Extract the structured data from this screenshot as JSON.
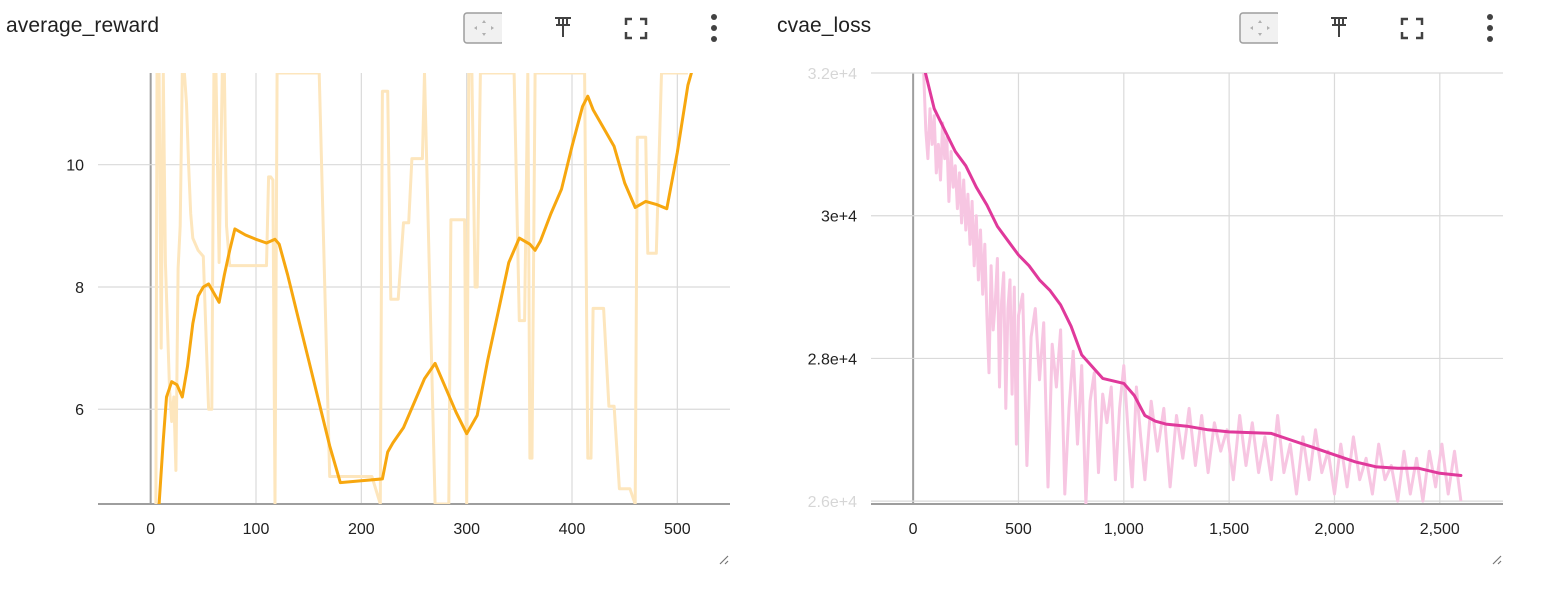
{
  "cards": [
    {
      "id": "average_reward",
      "title": "average_reward",
      "actions": [
        "fit-domain-icon",
        "pin-icon",
        "fullscreen-icon",
        "more-vert-icon"
      ]
    },
    {
      "id": "cvae_loss",
      "title": "cvae_loss",
      "actions": [
        "fit-domain-icon",
        "pin-icon",
        "fullscreen-icon",
        "more-vert-icon"
      ]
    }
  ],
  "colors": {
    "reward_smoothed": "#f7a70f",
    "reward_raw": "#fde6bd",
    "loss_smoothed": "#e0399b",
    "loss_raw": "#f7c6e2",
    "grid": "#dadada",
    "axis": "#9e9e9e"
  },
  "chart_data": [
    {
      "type": "line",
      "title": "average_reward",
      "xlim": [
        -50,
        550
      ],
      "ylim": [
        4.45,
        11.5
      ],
      "x_ticks": [
        0,
        100,
        200,
        300,
        400,
        500
      ],
      "x_tick_labels": [
        "0",
        "100",
        "200",
        "300",
        "400",
        "500"
      ],
      "y_ticks": [
        6,
        8,
        10
      ],
      "y_tick_labels": [
        "6",
        "8",
        "10"
      ],
      "grid": true,
      "series": [
        {
          "role": "smoothed",
          "x": [
            8,
            12,
            15,
            20,
            25,
            30,
            35,
            40,
            45,
            50,
            55,
            60,
            65,
            70,
            75,
            80,
            90,
            100,
            110,
            118,
            122,
            130,
            140,
            150,
            160,
            170,
            180,
            200,
            220,
            225,
            230,
            240,
            250,
            260,
            270,
            280,
            290,
            300,
            310,
            320,
            330,
            340,
            350,
            360,
            365,
            370,
            380,
            390,
            400,
            410,
            415,
            420,
            430,
            440,
            450,
            460,
            465,
            470,
            480,
            490,
            500,
            510,
            515
          ],
          "y": [
            4.45,
            5.5,
            6.2,
            6.45,
            6.4,
            6.2,
            6.7,
            7.4,
            7.85,
            8.0,
            8.05,
            7.9,
            7.75,
            8.2,
            8.6,
            8.95,
            8.85,
            8.78,
            8.72,
            8.78,
            8.7,
            8.2,
            7.5,
            6.8,
            6.1,
            5.4,
            4.8,
            4.83,
            4.86,
            5.3,
            5.45,
            5.7,
            6.1,
            6.5,
            6.75,
            6.35,
            5.95,
            5.6,
            5.9,
            6.8,
            7.6,
            8.4,
            8.8,
            8.7,
            8.6,
            8.75,
            9.2,
            9.6,
            10.3,
            10.95,
            11.12,
            10.9,
            10.6,
            10.3,
            9.7,
            9.3,
            9.35,
            9.4,
            9.35,
            9.28,
            10.2,
            11.3,
            11.6
          ]
        },
        {
          "role": "raw",
          "x": [
            5,
            6,
            8,
            10,
            12,
            14,
            18,
            20,
            22,
            24,
            26,
            28,
            30,
            32,
            34,
            36,
            38,
            40,
            45,
            50,
            55,
            58,
            60,
            62,
            65,
            68,
            70,
            72,
            75,
            80,
            85,
            90,
            95,
            100,
            105,
            110,
            112,
            114,
            116,
            118,
            120,
            125,
            130,
            140,
            150,
            160,
            170,
            180,
            200,
            210,
            218,
            220,
            225,
            228,
            230,
            235,
            240,
            242,
            245,
            248,
            250,
            255,
            258,
            260,
            270,
            275,
            280,
            283,
            285,
            290,
            295,
            298,
            300,
            302,
            305,
            308,
            310,
            313,
            315,
            318,
            320,
            330,
            340,
            345,
            350,
            352,
            355,
            358,
            360,
            362,
            365,
            368,
            370,
            375,
            380,
            385,
            390,
            395,
            400,
            405,
            410,
            412,
            415,
            418,
            420,
            422,
            425,
            430,
            435,
            440,
            445,
            450,
            455,
            460,
            462,
            465,
            470,
            472,
            475,
            480,
            485,
            490,
            495,
            500,
            505,
            510
          ],
          "y": [
            4.45,
            11.5,
            11.5,
            7.0,
            11.5,
            8.4,
            6.3,
            5.8,
            6.2,
            5.0,
            8.3,
            9.0,
            11.5,
            11.5,
            11.0,
            10.0,
            9.2,
            8.8,
            8.6,
            8.5,
            6.0,
            6.0,
            11.5,
            11.5,
            8.4,
            11.5,
            11.5,
            9.0,
            8.35,
            8.35,
            8.35,
            8.35,
            8.35,
            8.35,
            8.35,
            8.35,
            9.8,
            9.8,
            9.75,
            4.45,
            11.5,
            11.5,
            11.5,
            11.5,
            11.5,
            11.5,
            4.9,
            4.9,
            4.9,
            4.9,
            4.45,
            11.2,
            11.2,
            7.8,
            7.8,
            7.8,
            9.05,
            9.05,
            9.05,
            10.1,
            10.1,
            10.1,
            10.1,
            11.5,
            4.45,
            4.45,
            4.45,
            4.45,
            9.1,
            9.1,
            9.1,
            9.1,
            4.45,
            11.5,
            11.5,
            8.0,
            8.0,
            11.5,
            11.5,
            11.5,
            11.5,
            11.5,
            11.5,
            11.5,
            7.45,
            7.45,
            7.45,
            11.5,
            5.2,
            5.2,
            11.5,
            11.5,
            11.5,
            11.5,
            11.5,
            11.5,
            11.5,
            11.5,
            11.5,
            11.5,
            11.5,
            11.5,
            5.2,
            5.2,
            7.65,
            7.65,
            7.65,
            7.65,
            6.05,
            6.05,
            4.7,
            4.7,
            4.7,
            4.45,
            10.45,
            10.45,
            10.45,
            8.55,
            8.55,
            8.55,
            11.5,
            11.5,
            11.5,
            11.5,
            11.5,
            11.5
          ]
        }
      ]
    },
    {
      "type": "line",
      "title": "cvae_loss",
      "xlim": [
        -200,
        2800
      ],
      "ylim": [
        25960,
        32000
      ],
      "x_ticks": [
        0,
        500,
        1000,
        1500,
        2000,
        2500
      ],
      "x_tick_labels": [
        "0",
        "500",
        "1,000",
        "1,500",
        "2,000",
        "2,500"
      ],
      "y_ticks": [
        26000,
        28000,
        30000,
        32000
      ],
      "y_tick_labels": [
        "2.6e+4",
        "2.8e+4",
        "3e+4",
        "3.2e+4"
      ],
      "grid": true,
      "series": [
        {
          "role": "smoothed",
          "x": [
            50,
            100,
            150,
            200,
            250,
            300,
            350,
            400,
            450,
            500,
            550,
            600,
            650,
            700,
            750,
            800,
            900,
            1000,
            1050,
            1100,
            1150,
            1200,
            1300,
            1400,
            1500,
            1600,
            1700,
            1800,
            1900,
            2000,
            2100,
            2200,
            2300,
            2400,
            2500,
            2600
          ],
          "y": [
            32100,
            31500,
            31200,
            30900,
            30700,
            30400,
            30150,
            29850,
            29650,
            29450,
            29300,
            29100,
            28950,
            28750,
            28450,
            28050,
            27720,
            27650,
            27480,
            27200,
            27120,
            27080,
            27050,
            27000,
            26970,
            26960,
            26950,
            26850,
            26750,
            26650,
            26550,
            26480,
            26460,
            26460,
            26390,
            26360
          ]
        },
        {
          "role": "raw",
          "x": [
            50,
            60,
            70,
            80,
            90,
            100,
            110,
            120,
            130,
            140,
            150,
            160,
            170,
            180,
            190,
            200,
            210,
            220,
            230,
            240,
            250,
            260,
            270,
            280,
            290,
            300,
            310,
            320,
            330,
            340,
            350,
            360,
            370,
            380,
            390,
            400,
            410,
            420,
            430,
            440,
            450,
            460,
            470,
            480,
            490,
            500,
            520,
            540,
            560,
            580,
            600,
            620,
            640,
            660,
            680,
            700,
            720,
            740,
            760,
            780,
            800,
            820,
            840,
            860,
            880,
            900,
            920,
            940,
            960,
            980,
            1000,
            1020,
            1040,
            1060,
            1080,
            1100,
            1130,
            1160,
            1190,
            1220,
            1250,
            1280,
            1310,
            1340,
            1370,
            1400,
            1430,
            1460,
            1490,
            1520,
            1550,
            1580,
            1610,
            1640,
            1670,
            1700,
            1730,
            1760,
            1790,
            1820,
            1850,
            1880,
            1910,
            1940,
            1970,
            2000,
            2030,
            2060,
            2090,
            2120,
            2150,
            2180,
            2210,
            2240,
            2270,
            2300,
            2330,
            2360,
            2390,
            2420,
            2450,
            2480,
            2510,
            2540,
            2570,
            2600
          ],
          "y": [
            32000,
            31200,
            30800,
            31500,
            31000,
            31400,
            30600,
            31000,
            30500,
            31300,
            30800,
            31100,
            30200,
            30900,
            30400,
            30700,
            30100,
            30600,
            29900,
            30500,
            29800,
            30300,
            29600,
            30200,
            29300,
            30000,
            29100,
            29800,
            28900,
            29600,
            28600,
            27800,
            29300,
            28400,
            28800,
            29400,
            27600,
            28800,
            29200,
            27300,
            28700,
            29100,
            27500,
            29000,
            26800,
            28600,
            28900,
            26500,
            28300,
            28700,
            27700,
            28500,
            26200,
            28200,
            27600,
            28400,
            26100,
            27300,
            28100,
            26800,
            27900,
            25960,
            27400,
            27800,
            26400,
            27500,
            27100,
            27600,
            26300,
            27300,
            27900,
            27000,
            26200,
            27600,
            26900,
            26300,
            27400,
            26700,
            27300,
            26200,
            27200,
            26600,
            27300,
            26500,
            27200,
            26400,
            27100,
            26700,
            27000,
            26300,
            27200,
            26500,
            27100,
            26400,
            26900,
            26300,
            27200,
            26400,
            26800,
            26100,
            26900,
            26300,
            27000,
            26400,
            26700,
            26100,
            26800,
            26200,
            26900,
            26300,
            26600,
            26100,
            26800,
            26300,
            26500,
            26000,
            26700,
            26100,
            26600,
            26000,
            26700,
            26200,
            26800,
            26100,
            26700,
            26000
          ]
        }
      ]
    }
  ]
}
